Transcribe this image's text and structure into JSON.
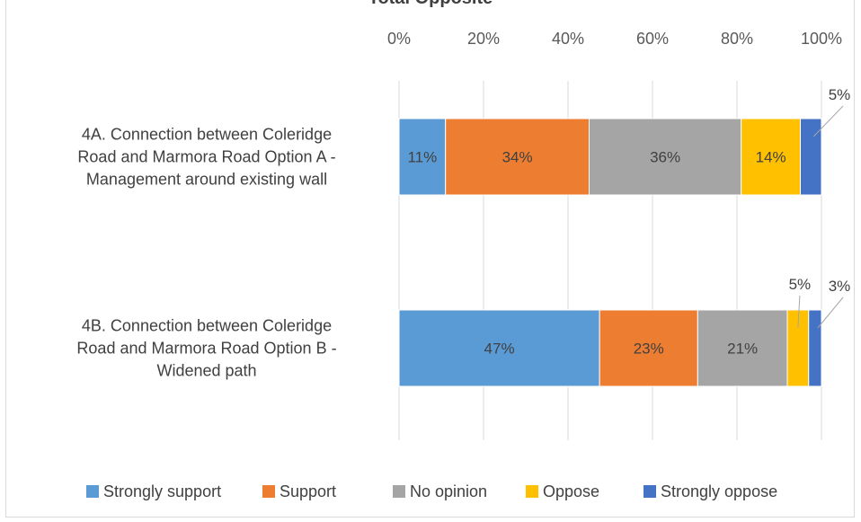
{
  "chart_data": {
    "type": "bar",
    "orientation": "horizontal",
    "stacked": "percent",
    "title": "Total Opposite",
    "categories": [
      "4A. Connection between Coleridge Road and Marmora Road Option A - Management around existing wall",
      "4B. Connection between Coleridge Road and Marmora Road Option B - Widened path"
    ],
    "series": [
      {
        "name": "Strongly support",
        "values": [
          11,
          47
        ],
        "labels": [
          "11%",
          "47%"
        ],
        "color": "#5b9bd5"
      },
      {
        "name": "Support",
        "values": [
          34,
          23
        ],
        "labels": [
          "34%",
          "23%"
        ],
        "color": "#ed7d31"
      },
      {
        "name": "No opinion",
        "values": [
          36,
          21
        ],
        "labels": [
          "36%",
          "21%"
        ],
        "color": "#a5a5a5"
      },
      {
        "name": "Oppose",
        "values": [
          14,
          5
        ],
        "labels": [
          "14%",
          "5%"
        ],
        "color": "#ffc000"
      },
      {
        "name": "Strongly oppose",
        "values": [
          5,
          3
        ],
        "labels": [
          "5%",
          "3%"
        ],
        "color": "#4472c4"
      }
    ],
    "xlim": [
      0,
      100
    ],
    "xticks": [
      "0%",
      "20%",
      "40%",
      "60%",
      "80%",
      "100%"
    ],
    "grid": true,
    "legend": "bottom"
  }
}
